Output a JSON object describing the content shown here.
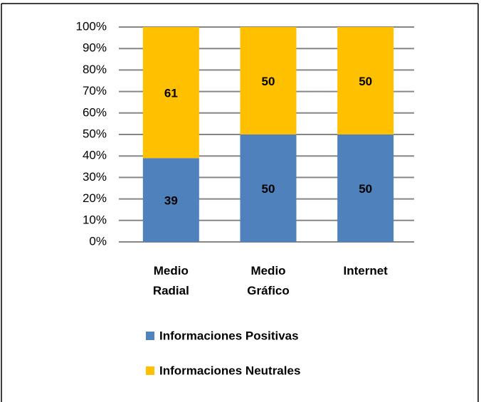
{
  "chart_data": {
    "type": "stacked_bar_100",
    "categories": [
      "Medio Radial",
      "Medio Gráfico",
      "Internet"
    ],
    "series": [
      {
        "name": "Informaciones Positivas",
        "color": "#4f81bd",
        "values": [
          39,
          50,
          50
        ]
      },
      {
        "name": "Informaciones Neutrales",
        "color": "#ffc000",
        "values": [
          61,
          50,
          50
        ]
      }
    ],
    "ylim": [
      0,
      100
    ],
    "yticks": [
      {
        "value": 0,
        "label": "0%"
      },
      {
        "value": 10,
        "label": "10%"
      },
      {
        "value": 20,
        "label": "20%"
      },
      {
        "value": 30,
        "label": "30%"
      },
      {
        "value": 40,
        "label": "40%"
      },
      {
        "value": 50,
        "label": "50%"
      },
      {
        "value": 60,
        "label": "60%"
      },
      {
        "value": 70,
        "label": "70%"
      },
      {
        "value": 80,
        "label": "80%"
      },
      {
        "value": 90,
        "label": "90%"
      },
      {
        "value": 100,
        "label": "100%"
      }
    ],
    "grid": true
  }
}
